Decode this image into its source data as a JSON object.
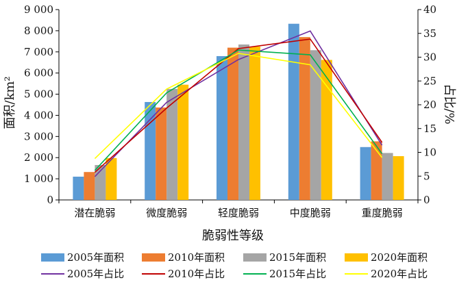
{
  "chart_data": {
    "type": "bar",
    "categories": [
      "潜在脆弱",
      "微度脆弱",
      "轻度脆弱",
      "中度脆弱",
      "重度脆弱"
    ],
    "xlabel": "脆弱性等级",
    "ylabel": "面积/km²",
    "y2label": "占比/%",
    "ylim": [
      0,
      9000
    ],
    "y2lim": [
      0,
      40
    ],
    "yticks": [
      "0",
      "1 000",
      "2 000",
      "3 000",
      "4 000",
      "5 000",
      "6 000",
      "7 000",
      "8 000",
      "9 000"
    ],
    "y2ticks": [
      "0",
      "5",
      "10",
      "15",
      "20",
      "25",
      "30",
      "35",
      "40"
    ],
    "grid": false,
    "legend_position": "bottom",
    "bar_series": [
      {
        "name": "2005年面积",
        "color": "#5b9bd5",
        "values": [
          1100,
          4630,
          6800,
          8330,
          2500
        ]
      },
      {
        "name": "2010年面积",
        "color": "#ed7d31",
        "values": [
          1320,
          4370,
          7200,
          7700,
          2770
        ]
      },
      {
        "name": "2015年面积",
        "color": "#a5a5a5",
        "values": [
          1650,
          5250,
          7350,
          7080,
          2220
        ]
      },
      {
        "name": "2020年面积",
        "color": "#ffc000",
        "values": [
          1980,
          5450,
          7250,
          6620,
          2070
        ]
      }
    ],
    "line_series": [
      {
        "name": "2005年占比",
        "color": "#7030a0",
        "values": [
          4.9,
          20.5,
          29.5,
          35.5,
          11.5
        ]
      },
      {
        "name": "2010年占比",
        "color": "#c00000",
        "values": [
          5.8,
          19.3,
          31.8,
          33.8,
          12.1
        ]
      },
      {
        "name": "2015年占比",
        "color": "#00b050",
        "values": [
          6.2,
          22.5,
          31.5,
          30.5,
          9.7
        ]
      },
      {
        "name": "2020年占比",
        "color": "#ffff00",
        "values": [
          8.7,
          23.3,
          30.8,
          28.4,
          8.9
        ]
      }
    ]
  }
}
